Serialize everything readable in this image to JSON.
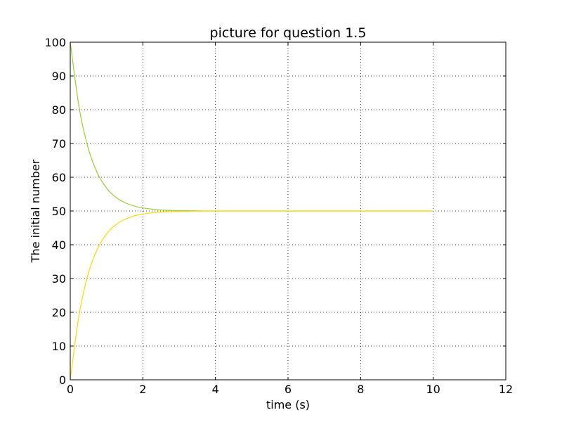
{
  "chart_data": {
    "type": "line",
    "title": "picture for question 1.5",
    "xlabel": "time (s)",
    "ylabel": "The initial number",
    "xlim": [
      0,
      12
    ],
    "ylim": [
      0,
      100
    ],
    "x_ticks": [
      0,
      2,
      4,
      6,
      8,
      10,
      12
    ],
    "y_ticks": [
      0,
      10,
      20,
      30,
      40,
      50,
      60,
      70,
      80,
      90,
      100
    ],
    "grid": true,
    "legend": "none",
    "series": [
      {
        "color": "#9acd32",
        "x": [
          0,
          0.25,
          0.5,
          0.75,
          1,
          1.25,
          1.5,
          1.75,
          2,
          2.5,
          3,
          4,
          5,
          6,
          7,
          8,
          9,
          10
        ],
        "y": [
          100,
          80.3,
          68.4,
          61.2,
          56.8,
          54.1,
          52.5,
          51.5,
          50.9,
          50.3,
          50.1,
          50,
          50,
          50,
          50,
          50,
          50,
          50
        ]
      },
      {
        "color": "#ffd700",
        "x": [
          0,
          0.25,
          0.5,
          0.75,
          1,
          1.25,
          1.5,
          1.75,
          2,
          2.5,
          3,
          4,
          5,
          6,
          7,
          8,
          9,
          10
        ],
        "y": [
          0,
          19.7,
          31.6,
          38.8,
          43.2,
          45.9,
          47.5,
          48.5,
          49.1,
          49.7,
          49.9,
          50,
          50,
          50,
          50,
          50,
          50,
          50
        ]
      }
    ]
  }
}
